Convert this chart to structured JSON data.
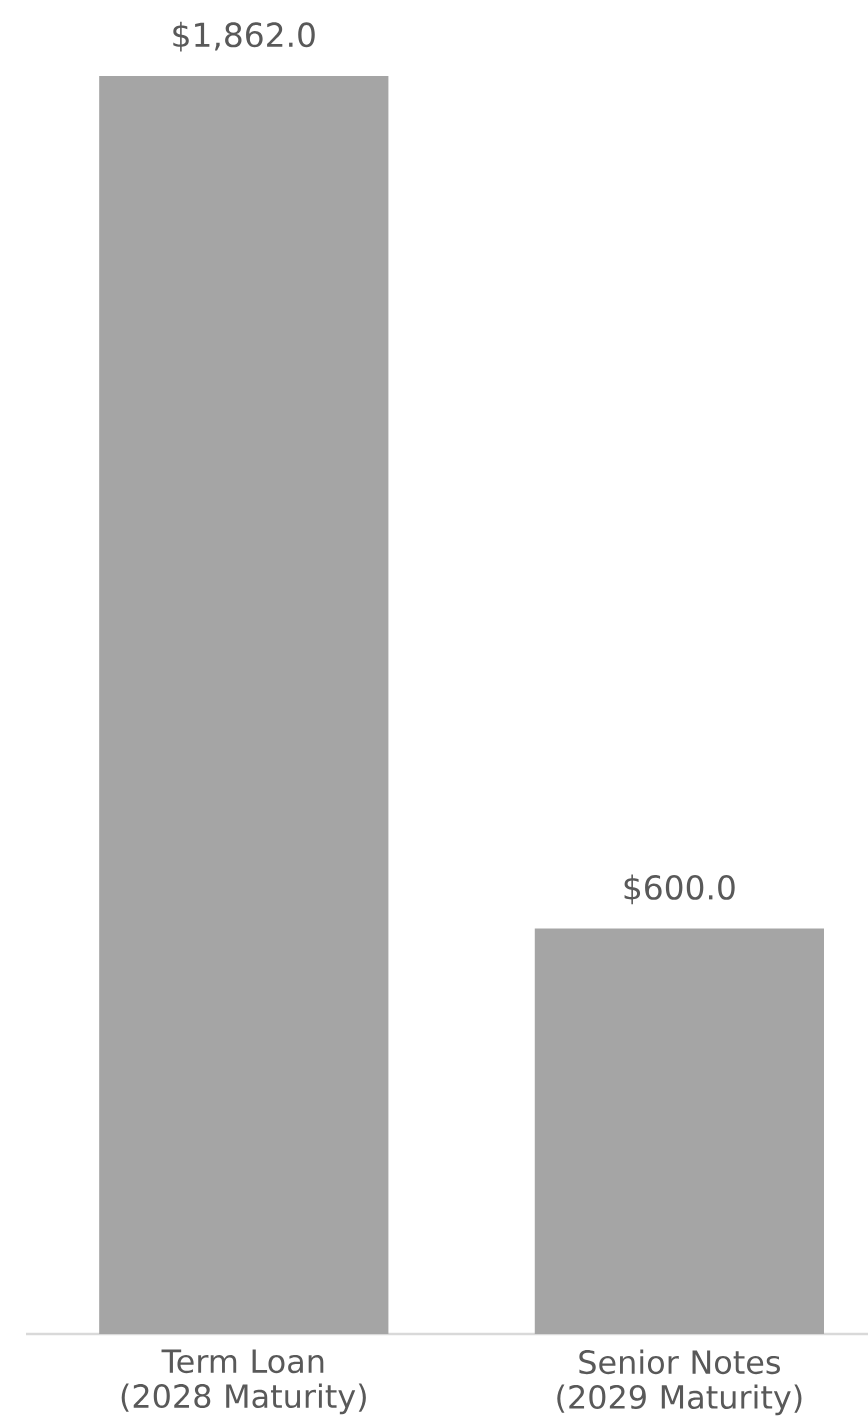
{
  "chart_data": {
    "type": "bar",
    "categories": [
      "Term Loan (2028 Maturity)",
      "Senior Notes (2029 Maturity)"
    ],
    "values": [
      1862.0,
      600.0
    ],
    "value_labels": [
      "$1,862.0",
      "$600.0"
    ],
    "color": "#a5a5a5"
  }
}
